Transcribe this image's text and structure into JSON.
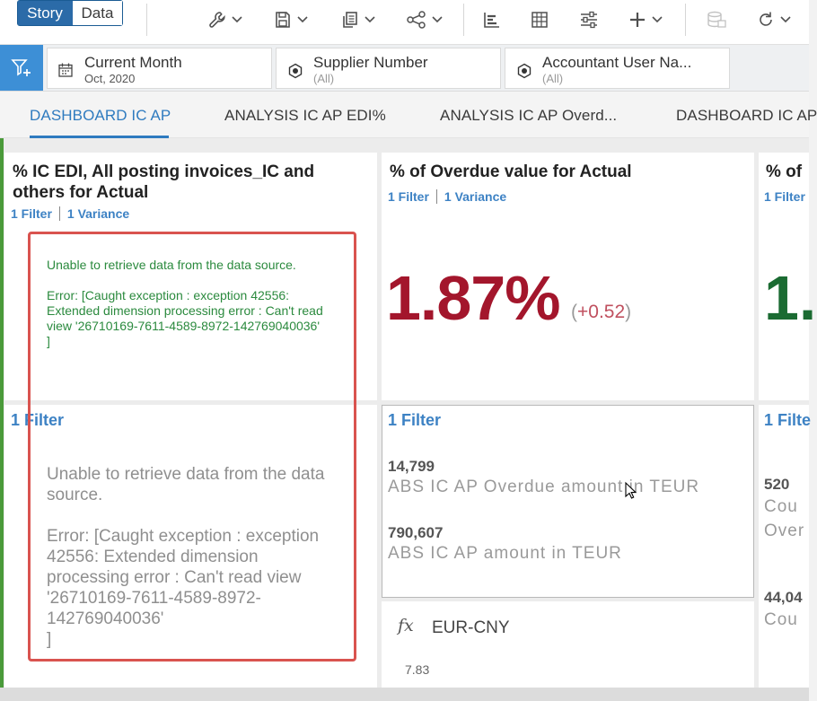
{
  "toolbar": {
    "story_label": "Story",
    "data_label": "Data",
    "icons": [
      "wrench-icon",
      "save-icon",
      "copy-icon",
      "share-icon",
      "bar-chart-icon",
      "table-icon",
      "sliders-icon",
      "plus-icon",
      "database-icon",
      "refresh-icon"
    ]
  },
  "filters": [
    {
      "title": "Current Month",
      "value": "Oct, 2020",
      "icon": "calendar-icon"
    },
    {
      "title": "Supplier Number",
      "value": "(All)",
      "icon": "dimension-icon"
    },
    {
      "title": "Accountant User Na...",
      "value": "(All)",
      "icon": "dimension-icon"
    }
  ],
  "tabs": [
    "DASHBOARD IC AP",
    "ANALYSIS IC AP EDI%",
    "ANALYSIS IC AP Overd...",
    "DASHBOARD IC AP"
  ],
  "tiles": {
    "t1": {
      "title_line1": "% IC EDI, All posting invoices_IC and",
      "title_line2": "others for Actual",
      "filter": "1 Filter",
      "variance": "1 Variance",
      "error_line1": "Unable to retrieve data from the data source.",
      "error_line2": "Error: [Caught exception : exception 42556: Extended dimension processing error : Can't read view '26710169-7611-4589-8972-142769040036'",
      "error_line3": "]"
    },
    "t2": {
      "title": "% of Overdue value for Actual",
      "filter": "1 Filter",
      "variance": "1 Variance",
      "kpi": "1.87%",
      "variance_open": "(",
      "variance_value": "+0.52",
      "variance_close": ")"
    },
    "t3": {
      "title": "% of",
      "filter": "1 Filter",
      "kpi": "1."
    },
    "t4": {
      "filter": "1 Filter",
      "error_line1": "Unable to retrieve data from the data source.",
      "error_line2": "Error: [Caught exception : exception 42556: Extended dimension processing error : Can't read view '26710169-7611-4589-8972-142769040036'",
      "error_line3": "]"
    },
    "t5": {
      "filter": "1 Filter",
      "rows": [
        {
          "value": "14,799",
          "label": "ABS IC AP Overdue amount in TEUR"
        },
        {
          "value": "790,607",
          "label": "ABS IC AP amount in TEUR"
        }
      ]
    },
    "t6": {
      "filter": "1 Filte",
      "rows": [
        {
          "value": "520",
          "label1": "Cou",
          "label2": "Over"
        },
        {
          "value": "44,04",
          "label1": "Cou"
        }
      ]
    },
    "t7": {
      "fx_symbol": "fx",
      "label": "EUR-CNY",
      "value": "7.83"
    }
  },
  "colors": {
    "accent": "#2f7bbf",
    "kpi_red": "#a3162c",
    "kpi_green": "#1b6b32",
    "error_green": "#2b8a3e",
    "highlight_red": "#d9534f"
  }
}
